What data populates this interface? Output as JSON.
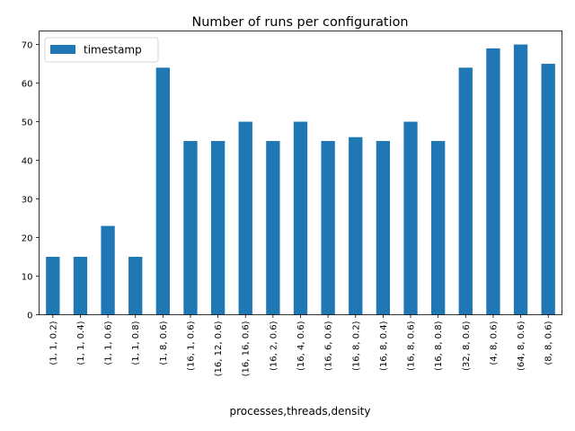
{
  "chart_data": {
    "type": "bar",
    "title": "Number of runs per configuration",
    "xlabel": "processes,threads,density",
    "ylabel": "",
    "ylim": [
      0,
      73.5
    ],
    "yticks": [
      0,
      10,
      20,
      30,
      40,
      50,
      60,
      70
    ],
    "grid": false,
    "legend_position": "top-left",
    "categories": [
      "(1, 1, 0.2)",
      "(1, 1, 0.4)",
      "(1, 1, 0.6)",
      "(1, 1, 0.8)",
      "(1, 8, 0.6)",
      "(16, 1, 0.6)",
      "(16, 12, 0.6)",
      "(16, 16, 0.6)",
      "(16, 2, 0.6)",
      "(16, 4, 0.6)",
      "(16, 6, 0.6)",
      "(16, 8, 0.2)",
      "(16, 8, 0.4)",
      "(16, 8, 0.6)",
      "(16, 8, 0.8)",
      "(32, 8, 0.6)",
      "(4, 8, 0.6)",
      "(64, 8, 0.6)",
      "(8, 8, 0.6)"
    ],
    "series": [
      {
        "name": "timestamp",
        "color": "#1f77b4",
        "values": [
          15,
          15,
          23,
          15,
          64,
          45,
          45,
          50,
          45,
          50,
          45,
          46,
          45,
          50,
          45,
          64,
          69,
          70,
          65
        ]
      }
    ]
  }
}
